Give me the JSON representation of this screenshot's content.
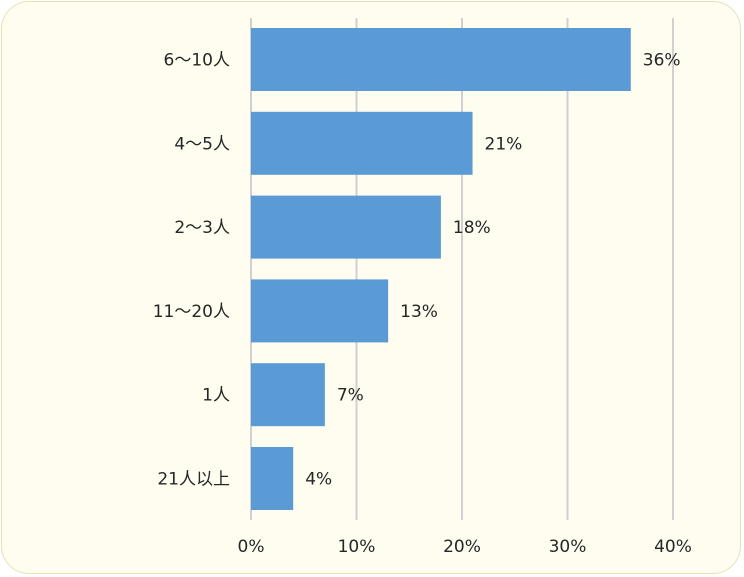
{
  "chart_data": {
    "type": "bar",
    "orientation": "horizontal",
    "title": "",
    "xlabel": "",
    "ylabel": "",
    "categories": [
      "6～10人",
      "4～5人",
      "2～3人",
      "11～20人",
      "1人",
      "21人以上"
    ],
    "values": [
      36,
      21,
      18,
      13,
      7,
      4
    ],
    "value_labels": [
      "36%",
      "21%",
      "18%",
      "13%",
      "7%",
      "4%"
    ],
    "xlim": [
      0,
      40
    ],
    "xticks": [
      0,
      10,
      20,
      30,
      40
    ],
    "xtick_labels": [
      "0%",
      "10%",
      "20%",
      "30%",
      "40%"
    ],
    "grid": "vertical",
    "legend": "none",
    "colors": {
      "bar": "#5b9bd5",
      "background": "#fefdf0",
      "grid": "#d0d0d0",
      "text": "#262626"
    }
  }
}
